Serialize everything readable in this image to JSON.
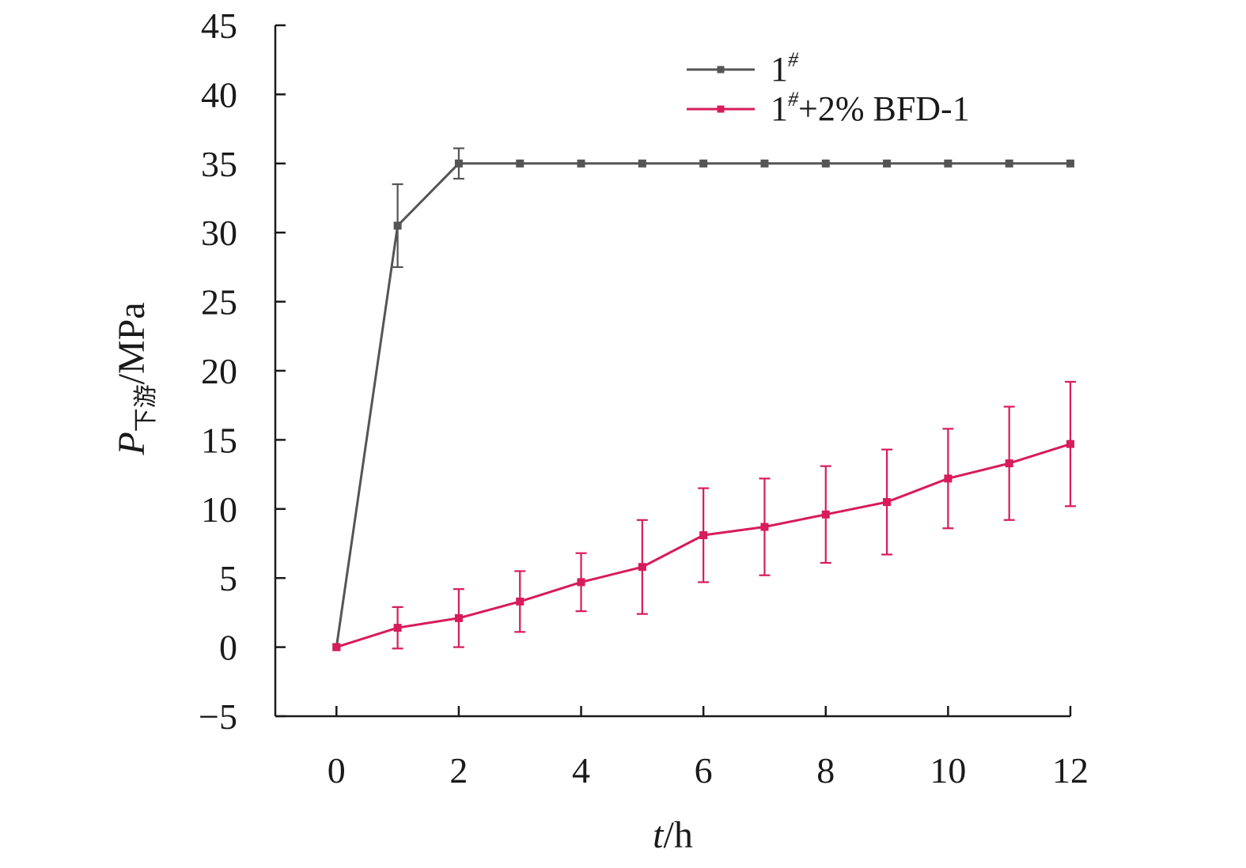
{
  "chart_data": {
    "type": "line",
    "xlabel": {
      "var": "t",
      "unit": "/h"
    },
    "ylabel": {
      "var": "P",
      "sub": "下游",
      "unit": "/MPa"
    },
    "xlim": [
      -1,
      12
    ],
    "ylim": [
      -5,
      45
    ],
    "x_ticks": [
      0,
      2,
      4,
      6,
      8,
      10,
      12
    ],
    "y_ticks": [
      -5,
      0,
      5,
      10,
      15,
      20,
      25,
      30,
      35,
      40,
      45
    ],
    "x_tick_labels": [
      "0",
      "2",
      "4",
      "6",
      "8",
      "10",
      "12"
    ],
    "y_tick_labels": [
      "−5",
      "0",
      "5",
      "10",
      "15",
      "20",
      "25",
      "30",
      "35",
      "40",
      "45"
    ],
    "grid": false,
    "legend_position": "top-right",
    "x": [
      0,
      1,
      2,
      3,
      4,
      5,
      6,
      7,
      8,
      9,
      10,
      11,
      12
    ],
    "series": [
      {
        "name_base": "1",
        "name_sup": "#",
        "name_rest": "",
        "color": "#555555",
        "values": [
          0,
          30.5,
          35,
          35,
          35,
          35,
          35,
          35,
          35,
          35,
          35,
          35,
          35
        ],
        "errors": [
          0,
          3,
          1.1,
          0,
          0,
          0,
          0,
          0,
          0,
          0,
          0,
          0,
          0
        ]
      },
      {
        "name_base": "1",
        "name_sup": "#",
        "name_rest": "+2% BFD-1",
        "color": "#d81b5b",
        "values": [
          0,
          1.4,
          2.1,
          3.3,
          4.7,
          5.8,
          8.1,
          8.7,
          9.6,
          10.5,
          12.2,
          13.3,
          14.7
        ],
        "errors": [
          0,
          1.5,
          2.1,
          2.2,
          2.1,
          3.4,
          3.4,
          3.5,
          3.5,
          3.8,
          3.6,
          4.1,
          4.5
        ]
      }
    ]
  }
}
